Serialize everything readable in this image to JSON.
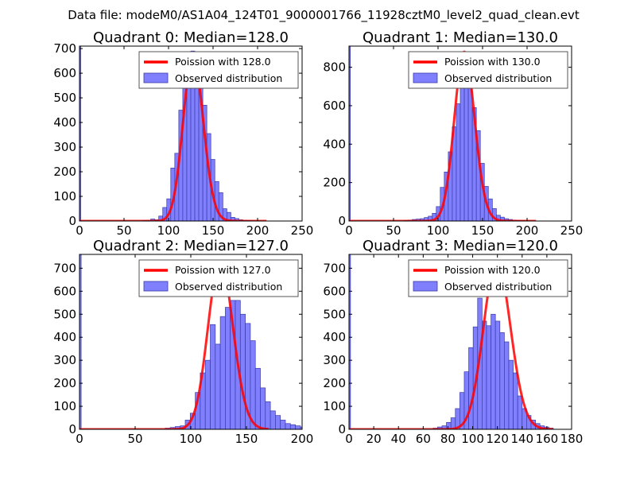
{
  "figure": {
    "suptitle": "Data file: modeM0/AS1A04_124T01_9000001766_11928cztM0_level2_quad_clean.evt"
  },
  "colors": {
    "bar_fill": "#8080ff",
    "bar_edge": "#3a3aa8",
    "poisson_line": "#ff0000",
    "legend_edge": "#555555"
  },
  "chart_data": [
    {
      "type": "bar",
      "title": "Quadrant 0: Median=128.0",
      "xlim": [
        0,
        250
      ],
      "ylim": [
        0,
        710
      ],
      "xticks": [
        "0",
        "50",
        "100",
        "150",
        "200",
        "250"
      ],
      "yticks": [
        "0",
        "100",
        "200",
        "300",
        "400",
        "500",
        "600",
        "700"
      ],
      "bins": {
        "start": 71,
        "width": 4.5,
        "counts": [
          2,
          3,
          8,
          5,
          20,
          55,
          90,
          215,
          275,
          450,
          610,
          630,
          690,
          630,
          580,
          470,
          355,
          250,
          160,
          115,
          50,
          35,
          15,
          10,
          5,
          3,
          2,
          1
        ]
      },
      "edge_bar": {
        "x": 0,
        "width": 1.5,
        "value": 710
      },
      "poisson": {
        "mean": 128.0,
        "peak": 670,
        "x_range": [
          0,
          210
        ]
      },
      "legend": [
        "Poission with 128.0",
        "Observed distribution"
      ]
    },
    {
      "type": "bar",
      "title": "Quadrant 1: Median=130.0",
      "xlim": [
        0,
        250
      ],
      "ylim": [
        0,
        910
      ],
      "xticks": [
        "0",
        "50",
        "100",
        "150",
        "200",
        "250"
      ],
      "yticks": [
        "0",
        "200",
        "400",
        "600",
        "800"
      ],
      "bins": {
        "start": 62,
        "width": 4.5,
        "counts": [
          3,
          5,
          8,
          10,
          12,
          18,
          25,
          40,
          75,
          175,
          255,
          360,
          490,
          610,
          710,
          790,
          740,
          590,
          470,
          300,
          180,
          115,
          65,
          30,
          20,
          12,
          8,
          5,
          3,
          2
        ]
      },
      "edge_bar": {
        "x": 0,
        "width": 1.5,
        "value": 910
      },
      "poisson": {
        "mean": 130.0,
        "peak": 880,
        "x_range": [
          0,
          210
        ]
      },
      "legend": [
        "Poission with 130.0",
        "Observed distribution"
      ]
    },
    {
      "type": "bar",
      "title": "Quadrant 2: Median=127.0",
      "xlim": [
        0,
        200
      ],
      "ylim": [
        0,
        760
      ],
      "xticks": [
        "0",
        "50",
        "100",
        "150",
        "200"
      ],
      "yticks": [
        "0",
        "100",
        "200",
        "300",
        "400",
        "500",
        "600",
        "700"
      ],
      "bins": {
        "start": 77,
        "width": 4.5,
        "counts": [
          5,
          8,
          12,
          15,
          40,
          70,
          160,
          245,
          300,
          455,
          370,
          490,
          530,
          560,
          560,
          500,
          460,
          385,
          265,
          180,
          120,
          80,
          60,
          40,
          25,
          20,
          15,
          10,
          5
        ]
      },
      "edge_bar": {
        "x": 0,
        "width": 1.5,
        "value": 760
      },
      "poisson": {
        "mean": 127.0,
        "peak": 730,
        "x_range": [
          0,
          170
        ]
      },
      "legend": [
        "Poission with 127.0",
        "Observed distribution"
      ]
    },
    {
      "type": "bar",
      "title": "Quadrant 3: Median=120.0",
      "xlim": [
        0,
        180
      ],
      "ylim": [
        0,
        760
      ],
      "xticks": [
        "0",
        "20",
        "40",
        "60",
        "80",
        "100",
        "120",
        "140",
        "160",
        "180"
      ],
      "yticks": [
        "0",
        "100",
        "200",
        "300",
        "400",
        "500",
        "600",
        "700"
      ],
      "bins": {
        "start": 68,
        "width": 3.6,
        "counts": [
          5,
          10,
          15,
          30,
          50,
          90,
          160,
          250,
          355,
          445,
          570,
          470,
          450,
          500,
          470,
          420,
          380,
          300,
          245,
          145,
          90,
          60,
          40,
          25,
          15,
          10,
          5
        ]
      },
      "edge_bar": {
        "x": 0,
        "width": 1.2,
        "value": 760
      },
      "poisson": {
        "mean": 120.0,
        "peak": 730,
        "x_range": [
          0,
          165
        ]
      },
      "legend": [
        "Poission with 120.0",
        "Observed distribution"
      ]
    }
  ]
}
